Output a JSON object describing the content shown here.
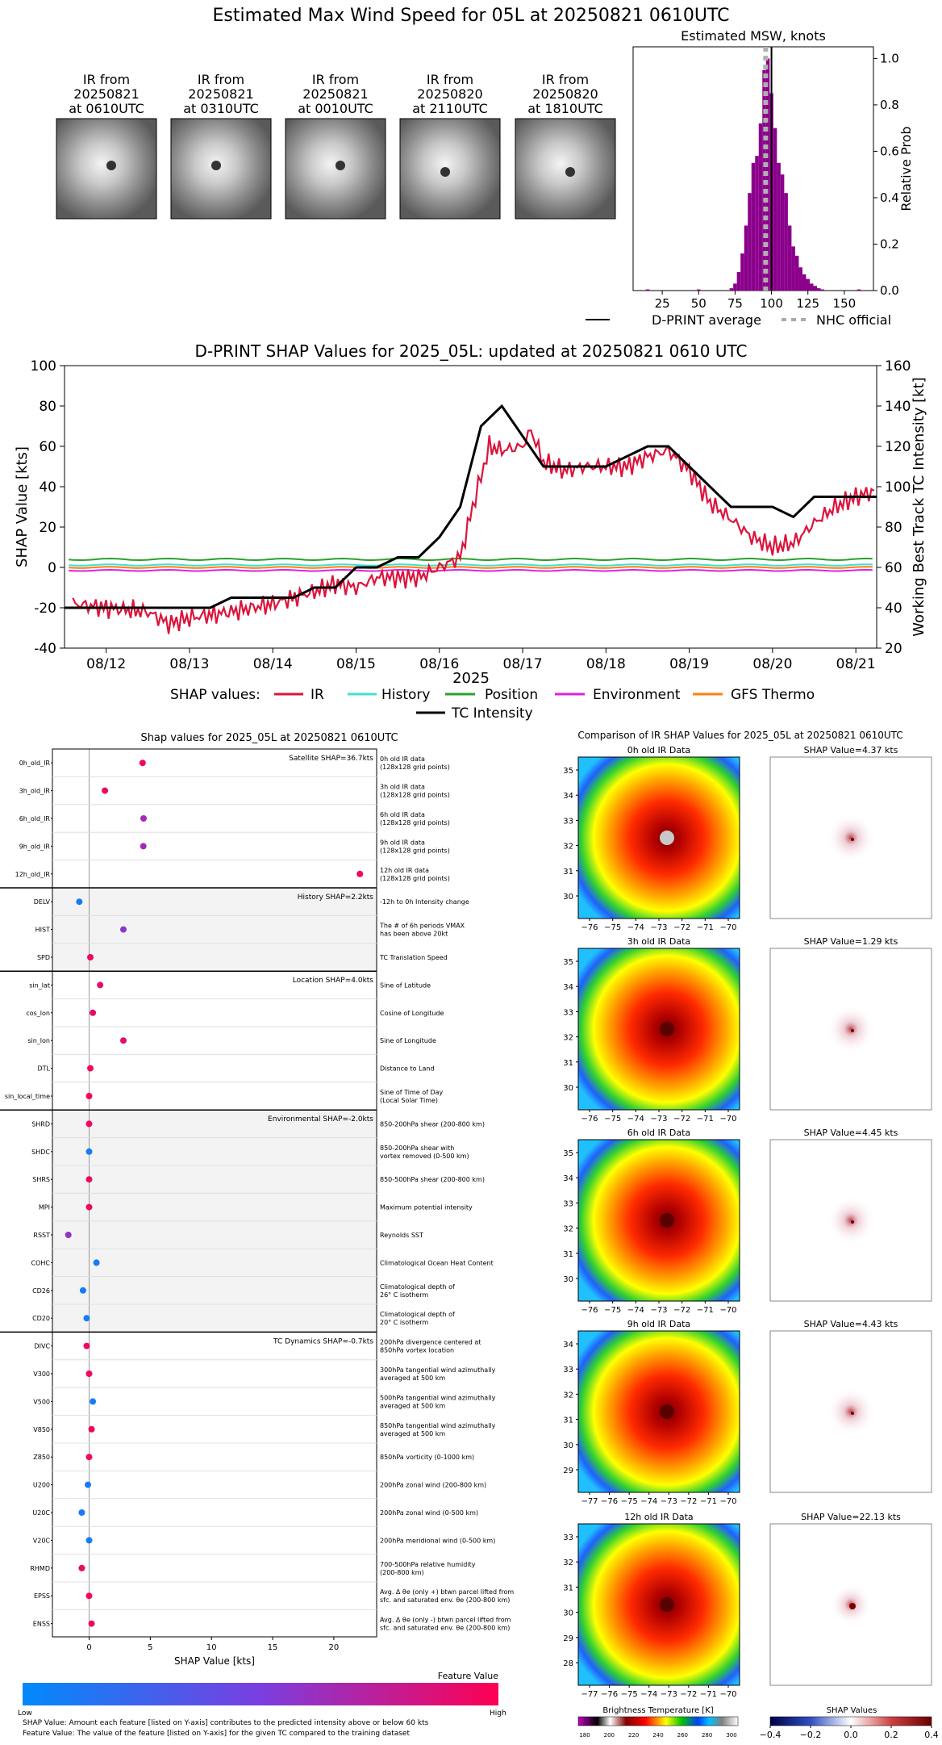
{
  "page_title": "Estimated Max Wind Speed for 05L at 20250821 0610UTC",
  "ir_thumbnails": [
    {
      "line1": "IR from",
      "line2": "20250821",
      "line3": "at 0610UTC"
    },
    {
      "line1": "IR from",
      "line2": "20250821",
      "line3": "at 0310UTC"
    },
    {
      "line1": "IR from",
      "line2": "20250821",
      "line3": "at 0010UTC"
    },
    {
      "line1": "IR from",
      "line2": "20250820",
      "line3": "at 2110UTC"
    },
    {
      "line1": "IR from",
      "line2": "20250820",
      "line3": "at 1810UTC"
    }
  ],
  "colors": {
    "purple": "#8b008b",
    "ir": "#dc143c",
    "history": "#40e0d0",
    "position": "#2ca02c",
    "environment": "#e020e0",
    "gfs": "#ff7f0e",
    "tc": "#000000"
  },
  "legend_top": {
    "dprint": "D-PRINT average",
    "nhc": "NHC official"
  },
  "shap_legend": {
    "prefix": "SHAP values:",
    "ir": "IR",
    "history": "History",
    "position": "Position",
    "environment": "Environment",
    "gfs": "GFS Thermo",
    "tc": "TC Intensity"
  },
  "bottom": {
    "left_title": "Shap values for 2025_05L at 20250821 0610UTC",
    "right_title": "Comparison of IR SHAP Values for 2025_05L at 20250821 0610UTC",
    "xlabel": "SHAP Value [kts]",
    "feature_value": "Feature Value",
    "low": "Low",
    "high": "High",
    "note1": "SHAP Value: Amount each feature [listed on Y-axis] contributes to the predicted intensity above or below 60 kts",
    "note2": "Feature Value: The value of the feature [listed on Y-axis] for the given TC compared to the training dataset",
    "groups": [
      {
        "title": "Satellite SHAP=36.7kts"
      },
      {
        "title": "History SHAP=2.2kts"
      },
      {
        "title": "Location SHAP=4.0kts"
      },
      {
        "title": "Environmental SHAP=-2.0kts"
      },
      {
        "title": "TC Dynamics SHAP=-0.7kts"
      }
    ],
    "ir_panels": [
      {
        "title": "0h old IR Data",
        "shap": "SHAP Value=4.37 kts"
      },
      {
        "title": "3h old IR Data",
        "shap": "SHAP Value=1.29 kts"
      },
      {
        "title": "6h old IR Data",
        "shap": "SHAP Value=4.45 kts"
      },
      {
        "title": "9h old IR Data",
        "shap": "SHAP Value=4.43 kts"
      },
      {
        "title": "12h old IR Data",
        "shap": "SHAP Value=22.13 kts"
      }
    ],
    "cbar1_title": "Brightness Temperature [K]",
    "cbar2_title": "SHAP Values"
  },
  "chart_data": [
    {
      "type": "bar",
      "title": "Estimated MSW, knots",
      "xlabel": "",
      "ylabel": "Relative Prob",
      "xlim": [
        5,
        170
      ],
      "ylim": [
        0,
        1.05
      ],
      "xticks": [
        25,
        50,
        75,
        100,
        125,
        150
      ],
      "yticks": [
        0.0,
        0.2,
        0.4,
        0.6,
        0.8,
        1.0
      ],
      "tick_labels_y": [
        "0.0",
        "0.2",
        "0.4",
        "0.6",
        "0.8",
        "1.0"
      ],
      "bin_width": 2.5,
      "bins": [
        [
          15,
          0.005
        ],
        [
          50,
          0.005
        ],
        [
          72.5,
          0.01
        ],
        [
          75,
          0.03
        ],
        [
          77.5,
          0.08
        ],
        [
          80,
          0.16
        ],
        [
          82.5,
          0.28
        ],
        [
          85,
          0.42
        ],
        [
          87.5,
          0.55
        ],
        [
          90,
          0.58
        ],
        [
          92.5,
          0.72
        ],
        [
          95,
          0.95
        ],
        [
          97.5,
          1.0
        ],
        [
          100,
          0.85
        ],
        [
          102.5,
          0.7
        ],
        [
          105,
          0.55
        ],
        [
          107.5,
          0.5
        ],
        [
          110,
          0.42
        ],
        [
          112.5,
          0.28
        ],
        [
          115,
          0.19
        ],
        [
          117.5,
          0.15
        ],
        [
          120,
          0.1
        ],
        [
          122.5,
          0.07
        ],
        [
          125,
          0.05
        ],
        [
          127.5,
          0.03
        ],
        [
          130,
          0.02
        ],
        [
          132.5,
          0.01
        ],
        [
          135,
          0.005
        ],
        [
          160,
          0.005
        ]
      ],
      "dprint_average": 100,
      "nhc_official": 96
    },
    {
      "type": "line",
      "title": "D-PRINT SHAP Values for 2025_05L: updated at 20250821 0610 UTC",
      "xlabel": "2025",
      "ylabel": "SHAP Value [kts]",
      "ylabel_right": "Working Best Track TC Intensity [kt]",
      "ylim": [
        -40,
        100
      ],
      "ylim_right": [
        20,
        160
      ],
      "yticks": [
        -40,
        -20,
        0,
        20,
        40,
        60,
        80,
        100
      ],
      "yticks_right": [
        20,
        40,
        60,
        80,
        100,
        120,
        140,
        160
      ],
      "xlim": [
        11.5,
        21.25
      ],
      "xticks": [
        {
          "x": 12,
          "label": "08/12"
        },
        {
          "x": 13,
          "label": "08/13"
        },
        {
          "x": 14,
          "label": "08/14"
        },
        {
          "x": 15,
          "label": "08/15"
        },
        {
          "x": 16,
          "label": "08/16"
        },
        {
          "x": 17,
          "label": "08/17"
        },
        {
          "x": 18,
          "label": "08/18"
        },
        {
          "x": 19,
          "label": "08/19"
        },
        {
          "x": 20,
          "label": "08/20"
        },
        {
          "x": 21,
          "label": "08/21"
        }
      ],
      "tc_intensity": {
        "x": [
          11.5,
          13.25,
          13.5,
          14,
          14.25,
          14.5,
          14.75,
          15,
          15.25,
          15.5,
          15.75,
          16,
          16.25,
          16.5,
          16.75,
          17,
          17.25,
          17.5,
          17.75,
          18,
          18.25,
          18.5,
          18.75,
          19,
          19.25,
          19.5,
          19.75,
          20,
          20.25,
          20.5,
          20.75,
          21,
          21.25
        ],
        "y": [
          40,
          40,
          45,
          45,
          45,
          50,
          50,
          60,
          60,
          65,
          65,
          75,
          90,
          130,
          140,
          125,
          110,
          110,
          110,
          110,
          115,
          120,
          120,
          110,
          100,
          90,
          90,
          90,
          85,
          95,
          95,
          95,
          95
        ]
      },
      "ir_shap": {
        "x": [
          11.6,
          12,
          12.5,
          12.75,
          13,
          13.5,
          14,
          14.5,
          14.75,
          15,
          15.25,
          15.5,
          15.75,
          16,
          16.25,
          16.4,
          16.5,
          16.6,
          16.75,
          17,
          17.1,
          17.25,
          17.5,
          17.75,
          18,
          18.25,
          18.5,
          18.75,
          19,
          19.25,
          19.5,
          19.75,
          20,
          20.25,
          20.5,
          20.75,
          21,
          21.25
        ],
        "y": [
          -18,
          -20,
          -22,
          -28,
          -25,
          -22,
          -18,
          -12,
          -8,
          -10,
          -5,
          -5,
          -5,
          0,
          5,
          30,
          45,
          60,
          58,
          60,
          68,
          52,
          48,
          50,
          50,
          50,
          55,
          58,
          48,
          32,
          24,
          15,
          10,
          12,
          22,
          30,
          35,
          38
        ]
      },
      "history_shap": 1.2,
      "position_shap": 4.0,
      "environment_shap": -1.5,
      "gfs_shap": 0.0
    },
    {
      "type": "scatter",
      "title": "Shap values for 2025_05L at 20250821 0610UTC",
      "xlabel": "SHAP Value [kts]",
      "xlim": [
        -3,
        23.5
      ],
      "xticks": [
        0,
        5,
        10,
        15,
        20
      ],
      "features": [
        {
          "name": "0h_old_IR",
          "value": 4.37,
          "fv": 0.95,
          "desc1": "0h old IR data",
          "desc2": "(128x128 grid points)"
        },
        {
          "name": "3h_old_IR",
          "value": 1.29,
          "fv": 0.95,
          "desc1": "3h old IR data",
          "desc2": "(128x128 grid points)"
        },
        {
          "name": "6h_old_IR",
          "value": 4.45,
          "fv": 0.65,
          "desc1": "6h old IR data",
          "desc2": "(128x128 grid points)"
        },
        {
          "name": "9h_old_IR",
          "value": 4.43,
          "fv": 0.65,
          "desc1": "9h old IR data",
          "desc2": "(128x128 grid points)"
        },
        {
          "name": "12h_old_IR",
          "value": 22.13,
          "fv": 0.95,
          "desc1": "12h old IR data",
          "desc2": "(128x128 grid points)"
        },
        {
          "name": "DELV",
          "value": -0.8,
          "fv": 0.1,
          "desc1": "-12h to 0h Intensity change",
          "desc2": ""
        },
        {
          "name": "HIST",
          "value": 2.8,
          "fv": 0.55,
          "desc1": "The # of 6h periods VMAX",
          "desc2": "has been above 20kt"
        },
        {
          "name": "SPD",
          "value": 0.1,
          "fv": 0.95,
          "desc1": "TC Translation Speed",
          "desc2": ""
        },
        {
          "name": "sin_lat",
          "value": 0.9,
          "fv": 0.9,
          "desc1": "Sine of Latitude",
          "desc2": ""
        },
        {
          "name": "cos_lon",
          "value": 0.3,
          "fv": 0.9,
          "desc1": "Cosine of Longitude",
          "desc2": ""
        },
        {
          "name": "sin_lon",
          "value": 2.8,
          "fv": 0.9,
          "desc1": "Sine of Longitude",
          "desc2": ""
        },
        {
          "name": "DTL",
          "value": 0.1,
          "fv": 0.95,
          "desc1": "Distance to Land",
          "desc2": ""
        },
        {
          "name": "sin_local_time",
          "value": 0.0,
          "fv": 0.95,
          "desc1": "Sine of Time of Day",
          "desc2": "(Local Solar Time)"
        },
        {
          "name": "SHRD",
          "value": 0.0,
          "fv": 0.95,
          "desc1": "850-200hPa shear (200-800 km)",
          "desc2": ""
        },
        {
          "name": "SHDC",
          "value": 0.0,
          "fv": 0.1,
          "desc1": "850-200hPa shear with",
          "desc2": "vortex removed (0-500 km)"
        },
        {
          "name": "SHRS",
          "value": 0.0,
          "fv": 0.95,
          "desc1": "850-500hPa shear (200-800 km)",
          "desc2": ""
        },
        {
          "name": "MPI",
          "value": 0.0,
          "fv": 0.95,
          "desc1": "Maximum potential intensity",
          "desc2": ""
        },
        {
          "name": "RSST",
          "value": -1.7,
          "fv": 0.6,
          "desc1": "Reynolds SST",
          "desc2": ""
        },
        {
          "name": "COHC",
          "value": 0.6,
          "fv": 0.1,
          "desc1": "Climatological Ocean Heat Content",
          "desc2": ""
        },
        {
          "name": "CD26",
          "value": -0.5,
          "fv": 0.1,
          "desc1": "Climatological depth of",
          "desc2": "26° C isotherm"
        },
        {
          "name": "CD20",
          "value": -0.2,
          "fv": 0.1,
          "desc1": "Climatological depth of",
          "desc2": "20° C isotherm"
        },
        {
          "name": "DIVC",
          "value": -0.2,
          "fv": 0.95,
          "desc1": "200hPa divergence centered at",
          "desc2": "850hPa vortex location"
        },
        {
          "name": "V300",
          "value": 0.0,
          "fv": 0.95,
          "desc1": "300hPa tangential wind azimuthally",
          "desc2": "averaged at 500 km"
        },
        {
          "name": "V500",
          "value": 0.3,
          "fv": 0.1,
          "desc1": "500hPa tangential wind azimuthally",
          "desc2": "averaged at 500 km"
        },
        {
          "name": "V850",
          "value": 0.2,
          "fv": 0.95,
          "desc1": "850hPa tangential wind azimuthally",
          "desc2": "averaged at 500 km"
        },
        {
          "name": "Z850",
          "value": 0.0,
          "fv": 0.95,
          "desc1": "850hPa vorticity (0-1000 km)",
          "desc2": ""
        },
        {
          "name": "U200",
          "value": -0.1,
          "fv": 0.1,
          "desc1": "200hPa zonal wind (200-800 km)",
          "desc2": ""
        },
        {
          "name": "U20C",
          "value": -0.6,
          "fv": 0.1,
          "desc1": "200hPa zonal wind (0-500 km)",
          "desc2": ""
        },
        {
          "name": "V20C",
          "value": 0.0,
          "fv": 0.1,
          "desc1": "200hPa meridional wind (0-500 km)",
          "desc2": ""
        },
        {
          "name": "RHMD",
          "value": -0.6,
          "fv": 0.95,
          "desc1": "700-500hPa relative humidity",
          "desc2": "(200-800 km)"
        },
        {
          "name": "EPSS",
          "value": 0.0,
          "fv": 0.95,
          "desc1": "Avg. Δ θe (only +) btwn parcel lifted from",
          "desc2": "sfc. and saturated env. θe (200-800 km)"
        },
        {
          "name": "ENSS",
          "value": 0.2,
          "fv": 0.95,
          "desc1": "Avg. Δ θe (only -) btwn parcel lifted from",
          "desc2": "sfc. and saturated env. θe (200-800 km)"
        }
      ]
    }
  ],
  "ir_axes": [
    {
      "xticks": [
        "−76",
        "−75",
        "−74",
        "−73",
        "−72",
        "−71",
        "−70"
      ],
      "yticks": [
        "30",
        "31",
        "32",
        "33",
        "34",
        "35"
      ]
    },
    {
      "xticks": [
        "−76",
        "−75",
        "−74",
        "−73",
        "−72",
        "−71",
        "−70"
      ],
      "yticks": [
        "30",
        "31",
        "32",
        "33",
        "34",
        "35"
      ]
    },
    {
      "xticks": [
        "−76",
        "−75",
        "−74",
        "−73",
        "−72",
        "−71",
        "−70"
      ],
      "yticks": [
        "30",
        "31",
        "32",
        "33",
        "34",
        "35"
      ]
    },
    {
      "xticks": [
        "−77",
        "−76",
        "−75",
        "−74",
        "−73",
        "−72",
        "−71",
        "−70"
      ],
      "yticks": [
        "29",
        "30",
        "31",
        "32",
        "33",
        "34"
      ]
    },
    {
      "xticks": [
        "−77",
        "−76",
        "−75",
        "−74",
        "−73",
        "−72",
        "−71",
        "−70"
      ],
      "yticks": [
        "28",
        "29",
        "30",
        "31",
        "32",
        "33"
      ]
    }
  ],
  "cbar1_ticks": [
    "180",
    "200",
    "220",
    "240",
    "260",
    "280",
    "300"
  ],
  "cbar2_ticks": [
    "−0.4",
    "−0.2",
    "0.0",
    "0.2",
    "0.4"
  ]
}
